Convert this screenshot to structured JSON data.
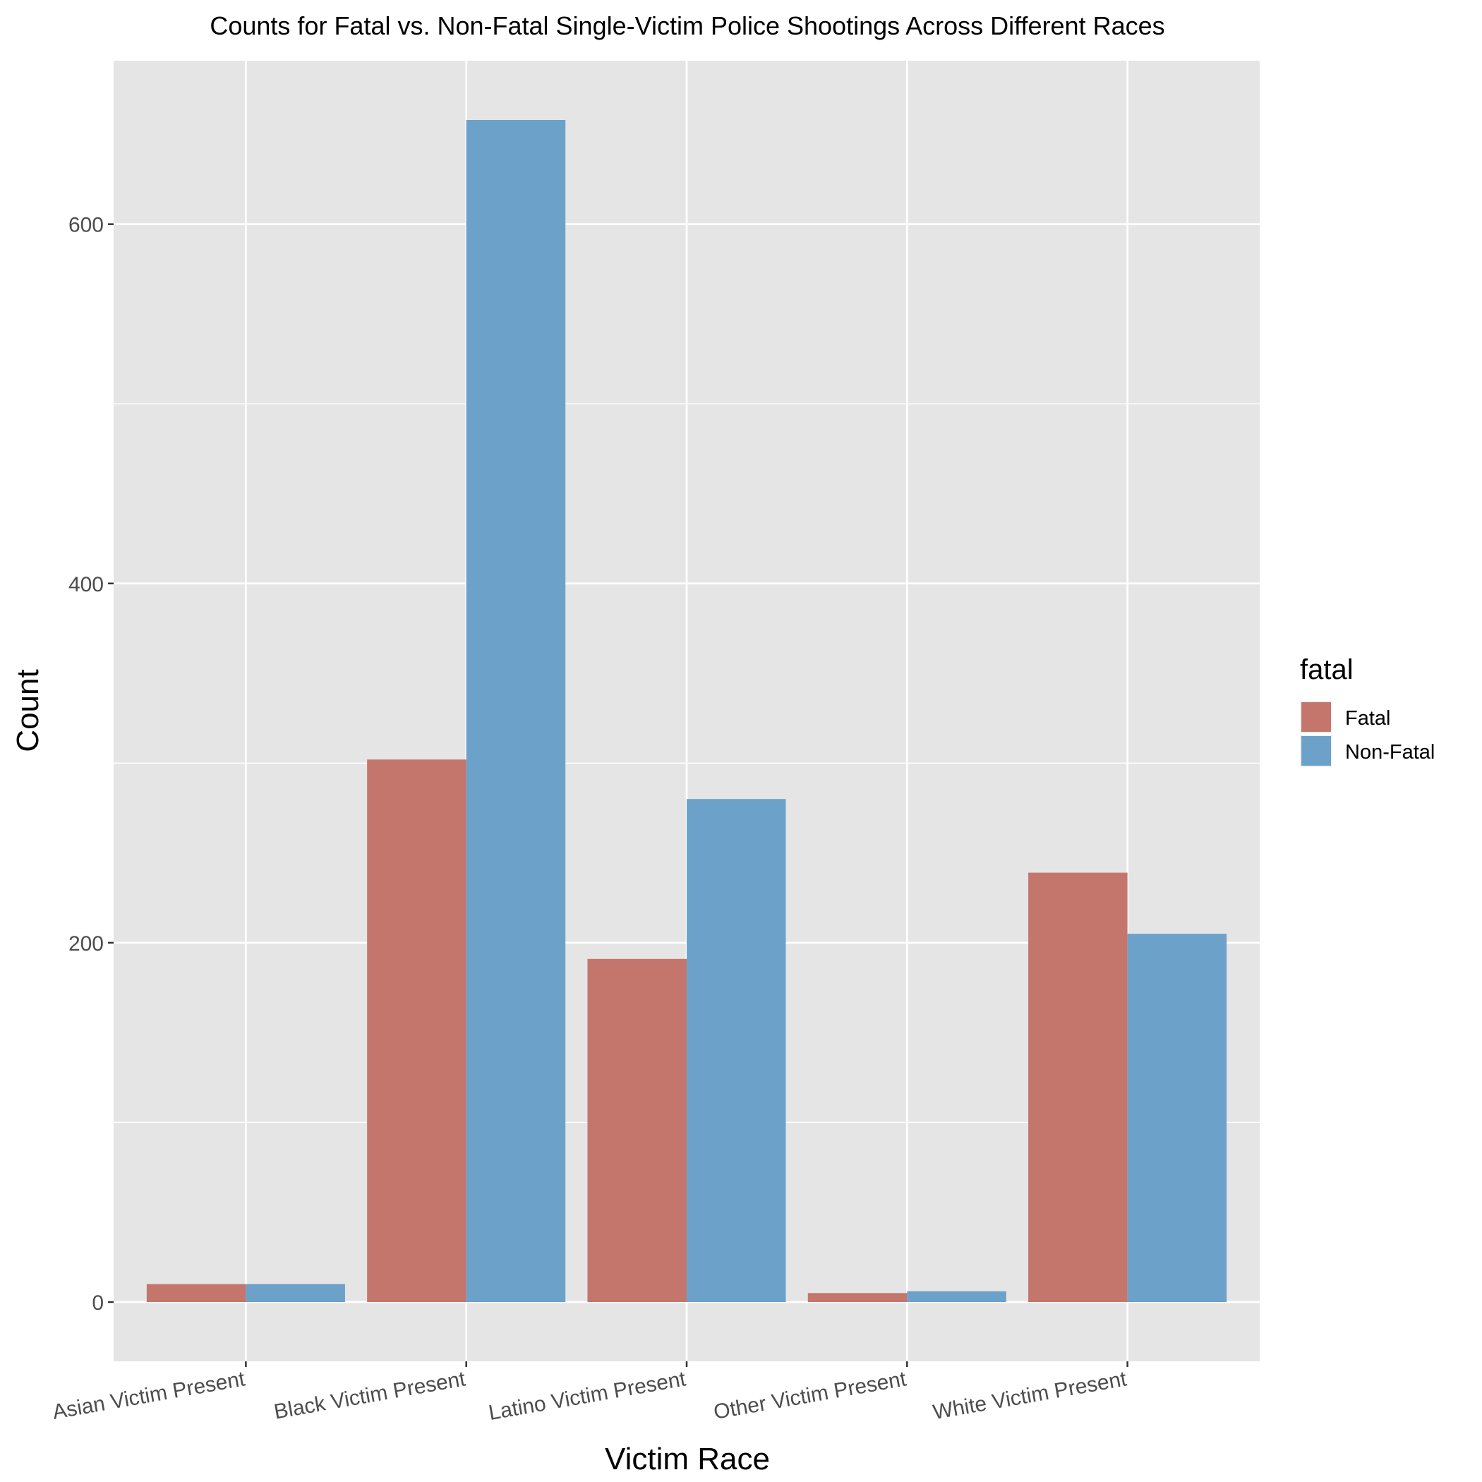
{
  "chart_data": {
    "type": "bar",
    "title": "Counts for Fatal vs. Non-Fatal Single-Victim Police Shootings Across Different Races",
    "xlabel": "Victim Race",
    "ylabel": "Count",
    "categories": [
      "Asian Victim Present",
      "Black Victim Present",
      "Latino Victim Present",
      "Other Victim Present",
      "White Victim Present"
    ],
    "series": [
      {
        "name": "Fatal",
        "color": "#c5766c",
        "values": [
          10,
          302,
          191,
          5,
          239
        ]
      },
      {
        "name": "Non-Fatal",
        "color": "#6ca2c9",
        "values": [
          10,
          658,
          280,
          6,
          205
        ]
      }
    ],
    "yticks": [
      0,
      200,
      400,
      600
    ],
    "ylim": [
      -33,
      691
    ],
    "grid": true,
    "legend": {
      "title": "fatal",
      "position": "right"
    }
  }
}
